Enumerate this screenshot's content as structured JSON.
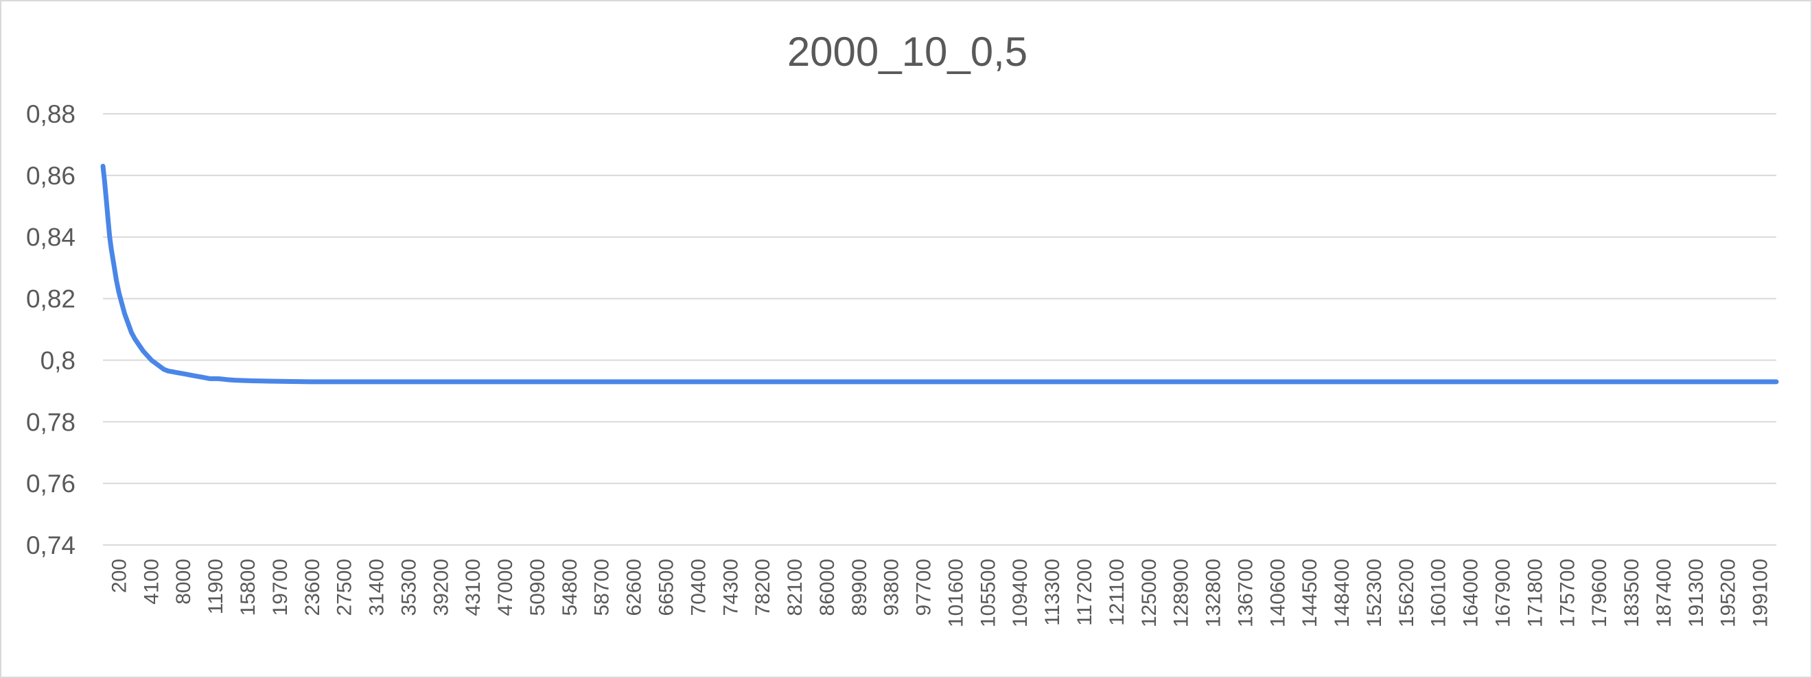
{
  "chart_data": {
    "type": "line",
    "title": "2000_10_0,5",
    "xlabel": "",
    "ylabel": "",
    "x_tick_labels": [
      "200",
      "4100",
      "8000",
      "11900",
      "15800",
      "19700",
      "23600",
      "27500",
      "31400",
      "35300",
      "39200",
      "43100",
      "47000",
      "50900",
      "54800",
      "58700",
      "62600",
      "66500",
      "70400",
      "74300",
      "78200",
      "82100",
      "86000",
      "89900",
      "93800",
      "97700",
      "101600",
      "105500",
      "109400",
      "113300",
      "117200",
      "121100",
      "125000",
      "128900",
      "132800",
      "136700",
      "140600",
      "144500",
      "148400",
      "152300",
      "156200",
      "160100",
      "164000",
      "167900",
      "171800",
      "175700",
      "179600",
      "183500",
      "187400",
      "191300",
      "195200",
      "199100"
    ],
    "x_range": [
      200,
      200100
    ],
    "y_tick_labels": [
      "0,74",
      "0,76",
      "0,78",
      "0,8",
      "0,82",
      "0,84",
      "0,86",
      "0,88"
    ],
    "y_ticks": [
      0.74,
      0.76,
      0.78,
      0.8,
      0.82,
      0.84,
      0.86,
      0.88
    ],
    "ylim": [
      0.74,
      0.88
    ],
    "grid": true,
    "legend": "none",
    "series_color": "#4a86e8",
    "series": [
      {
        "x": [
          200,
          400,
          600,
          800,
          1000,
          1200,
          1500,
          1800,
          2100,
          2400,
          2800,
          3200,
          3600,
          4000,
          4500,
          5000,
          5500,
          6000,
          6500,
          7000,
          7500,
          8000,
          9000,
          10000,
          11000,
          12000,
          13000,
          14000,
          15000,
          16000,
          18000,
          20000,
          22000,
          25000,
          30000,
          40000,
          50000,
          60000,
          70000,
          80000,
          90000,
          100000,
          110000,
          120000,
          130000,
          140000,
          150000,
          160000,
          170000,
          180000,
          190000,
          200100
        ],
        "y": [
          0.863,
          0.858,
          0.852,
          0.846,
          0.84,
          0.836,
          0.831,
          0.826,
          0.822,
          0.819,
          0.815,
          0.812,
          0.809,
          0.807,
          0.805,
          0.803,
          0.8015,
          0.8,
          0.799,
          0.798,
          0.797,
          0.7965,
          0.796,
          0.7955,
          0.795,
          0.7945,
          0.794,
          0.794,
          0.7937,
          0.7935,
          0.7933,
          0.7932,
          0.7931,
          0.793,
          0.793,
          0.793,
          0.793,
          0.793,
          0.793,
          0.793,
          0.793,
          0.793,
          0.793,
          0.793,
          0.793,
          0.793,
          0.793,
          0.793,
          0.793,
          0.793,
          0.793,
          0.793
        ]
      }
    ]
  }
}
